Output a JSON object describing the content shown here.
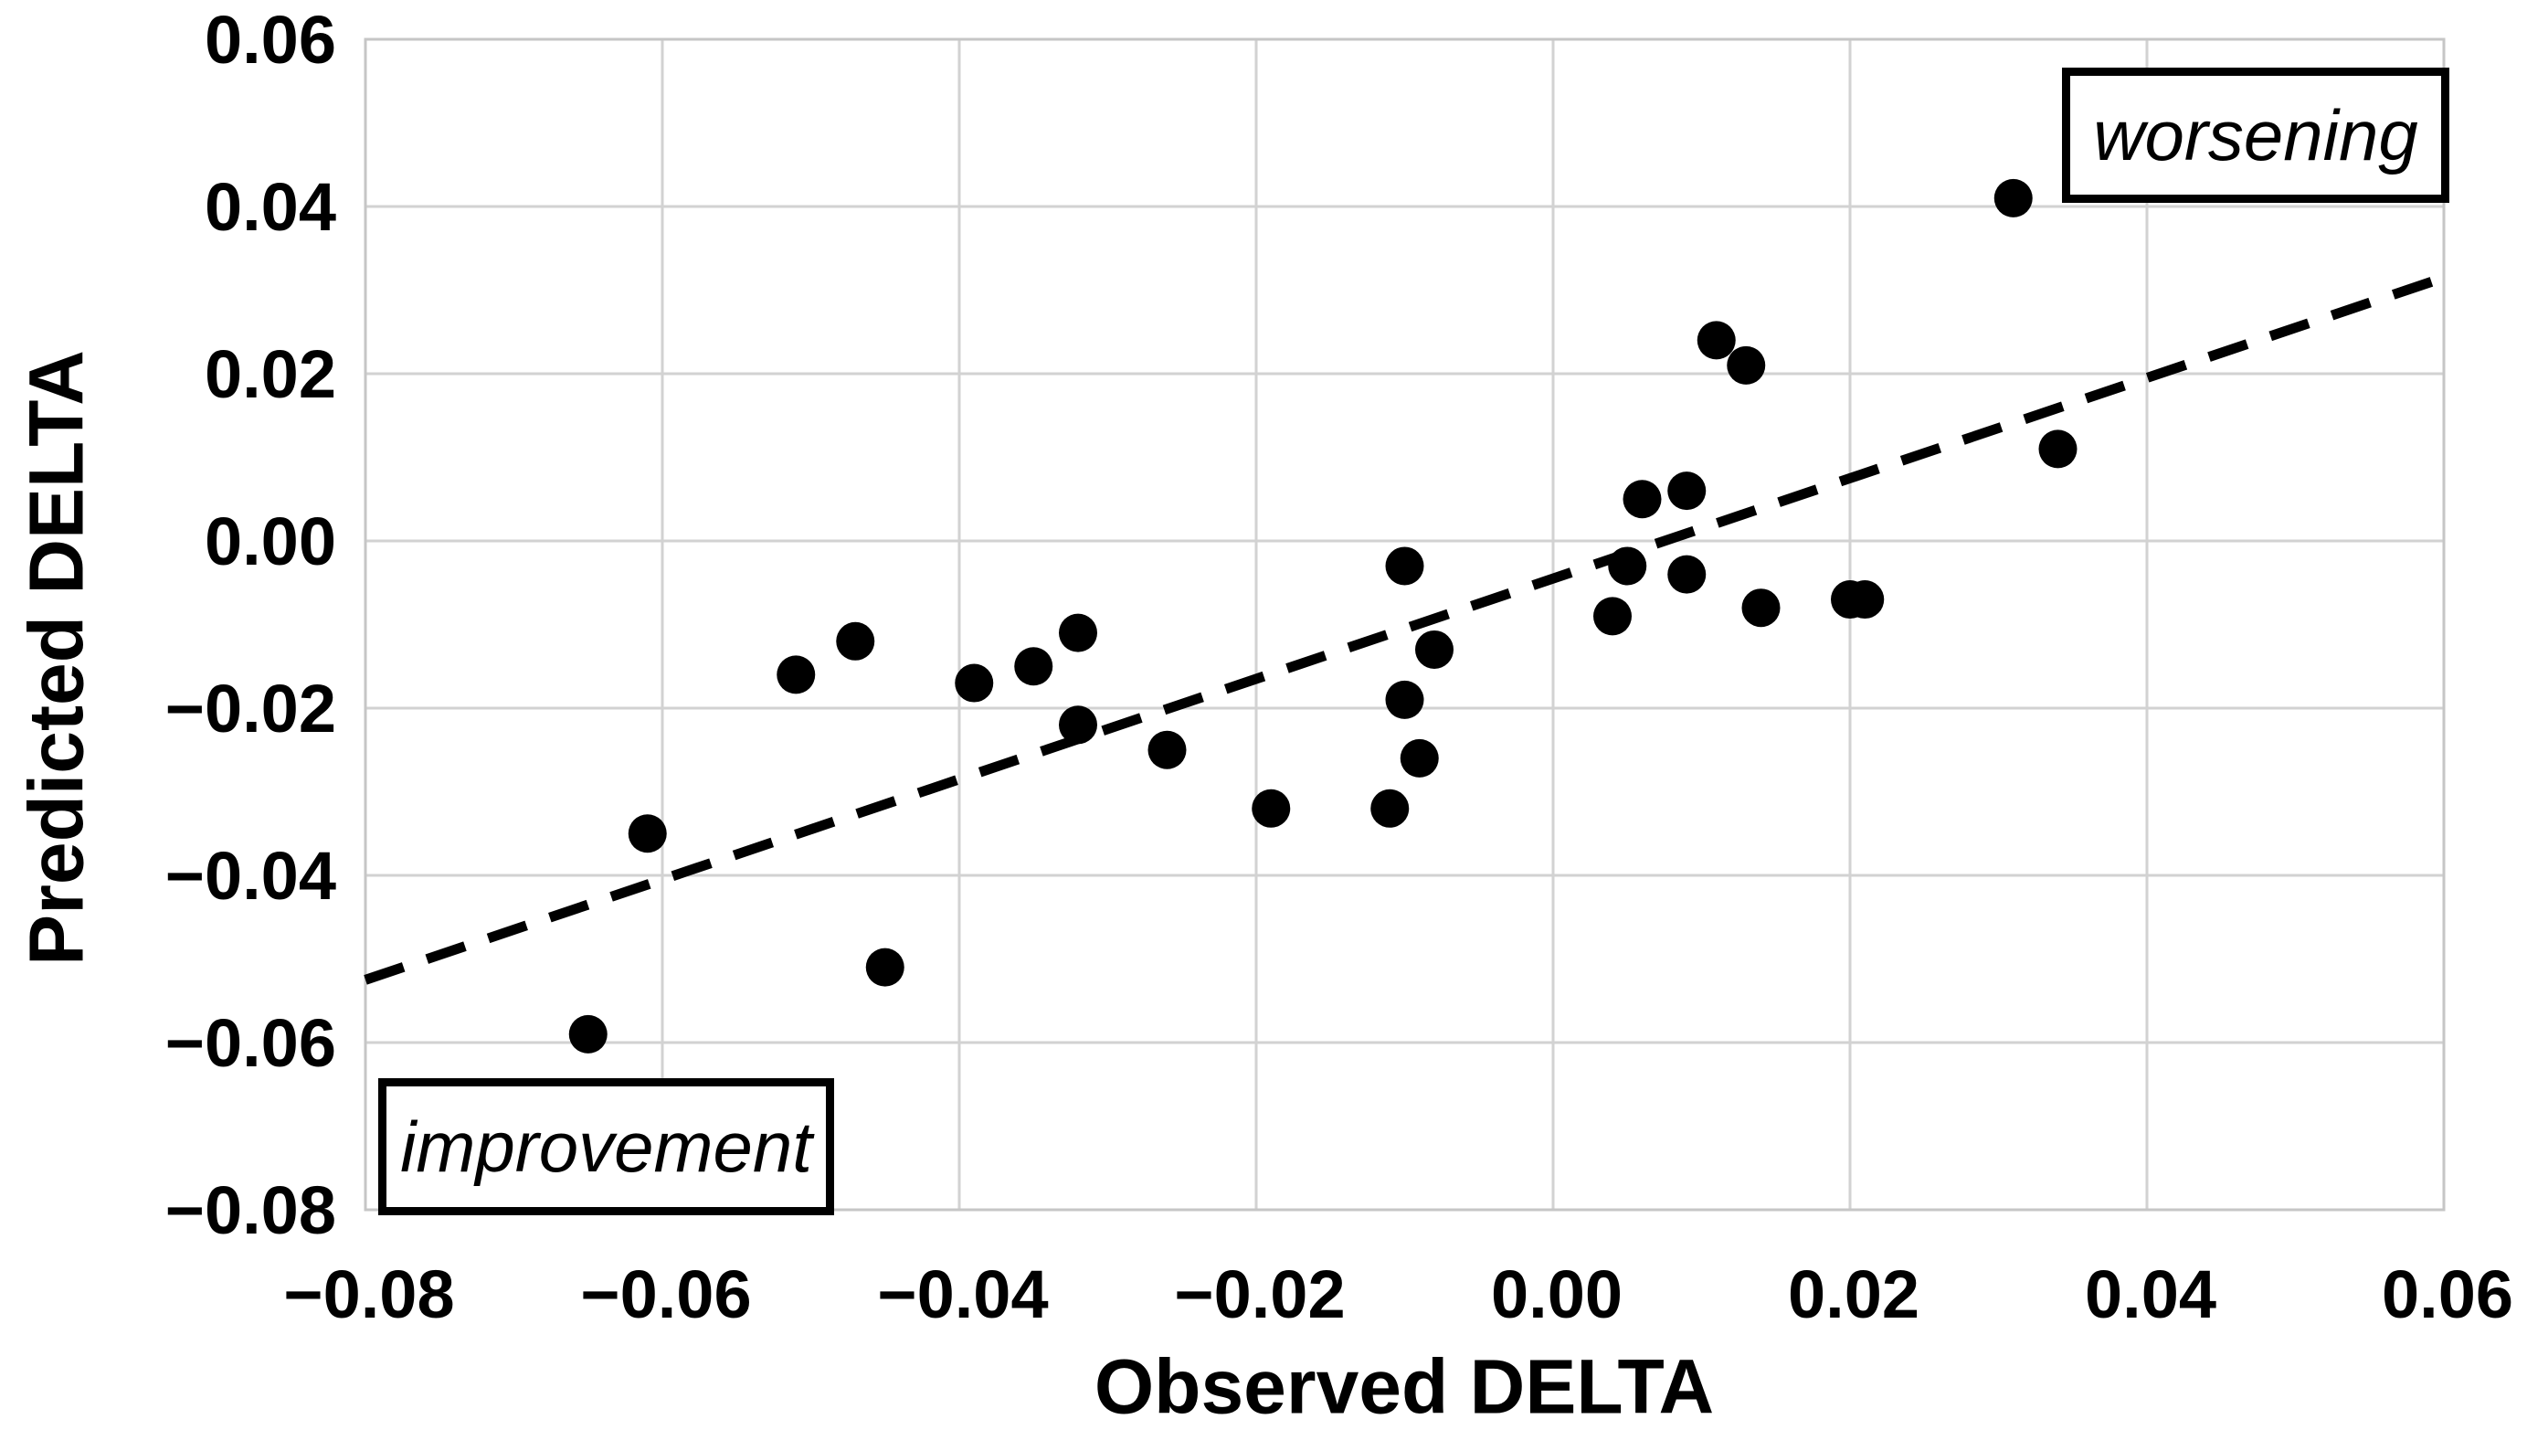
{
  "chart_data": {
    "type": "scatter",
    "title": "",
    "xlabel": "Observed DELTA",
    "ylabel": "Predicted DELTA",
    "xlim": [
      -0.08,
      0.06
    ],
    "ylim": [
      -0.08,
      0.06
    ],
    "grid": true,
    "x_tick_values": [
      -0.08,
      -0.06,
      -0.04,
      -0.02,
      0.0,
      0.02,
      0.04,
      0.06
    ],
    "x_tick_labels": [
      "−0.08",
      "−0.06",
      "−0.04",
      "−0.02",
      "0.00",
      "0.02",
      "0.04",
      "0.06"
    ],
    "y_tick_values": [
      0.06,
      0.04,
      0.02,
      0.0,
      -0.02,
      -0.04,
      -0.06,
      -0.08
    ],
    "y_tick_labels": [
      "0.06",
      "0.04",
      "0.02",
      "0.00",
      "−0.02",
      "−0.04",
      "−0.06",
      "−0.08"
    ],
    "points": [
      [
        -0.065,
        -0.059
      ],
      [
        -0.061,
        -0.035
      ],
      [
        -0.051,
        -0.016
      ],
      [
        -0.047,
        -0.012
      ],
      [
        -0.045,
        -0.051
      ],
      [
        -0.039,
        -0.017
      ],
      [
        -0.035,
        -0.015
      ],
      [
        -0.032,
        -0.011
      ],
      [
        -0.032,
        -0.022
      ],
      [
        -0.026,
        -0.025
      ],
      [
        -0.019,
        -0.032
      ],
      [
        -0.011,
        -0.032
      ],
      [
        -0.01,
        -0.003
      ],
      [
        -0.01,
        -0.019
      ],
      [
        -0.009,
        -0.026
      ],
      [
        -0.008,
        -0.013
      ],
      [
        0.004,
        -0.009
      ],
      [
        0.005,
        -0.003
      ],
      [
        0.006,
        0.005
      ],
      [
        0.009,
        0.006
      ],
      [
        0.009,
        -0.004
      ],
      [
        0.011,
        0.024
      ],
      [
        0.013,
        0.021
      ],
      [
        0.014,
        -0.008
      ],
      [
        0.02,
        -0.007
      ],
      [
        0.021,
        -0.007
      ],
      [
        0.031,
        0.041
      ],
      [
        0.034,
        0.011
      ]
    ],
    "trend_line": {
      "style": "dashed",
      "x1": -0.08,
      "y1": -0.0525,
      "x2": 0.06,
      "y2": 0.0315
    },
    "annotations": {
      "worsening": {
        "text": "worsening",
        "position": "top-right"
      },
      "improvement": {
        "text": "improvement",
        "position": "bottom-left"
      }
    },
    "legend": null
  },
  "colors": {
    "point": "#000000",
    "trend": "#000000",
    "grid": "#d2d2d2",
    "plot_border": "#c6c6c6",
    "text": "#000000",
    "background": "#ffffff"
  }
}
